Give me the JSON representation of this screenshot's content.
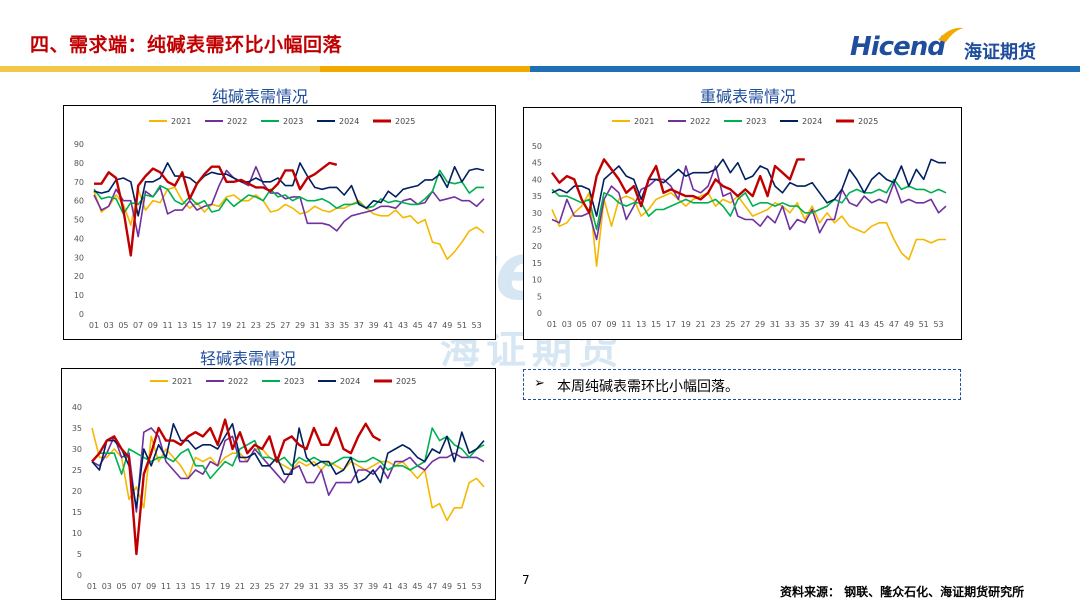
{
  "header": {
    "title": "四、需求端：纯碱表需环比小幅回落",
    "logo_text": "Hicend",
    "logo_cn": "海证期货"
  },
  "colors": {
    "title_red": "#c00000",
    "brand_blue": "#1f4e9c",
    "bar_orange": "#f2a900",
    "bar_blue": "#1f6fb5",
    "series_2021": "#f5b800",
    "series_2022": "#7030a0",
    "series_2023": "#00b050",
    "series_2024": "#002060",
    "series_2025": "#c00000"
  },
  "note": {
    "arrow": "➢",
    "text": "本周纯碱表需环比小幅回落。"
  },
  "page_number": "7",
  "source": "资料来源： 钢联、隆众石化、海证期货研究所",
  "chart_data": [
    {
      "type": "line",
      "title": "纯碱表需情况",
      "x_labels": [
        "01",
        "03",
        "05",
        "07",
        "09",
        "11",
        "13",
        "15",
        "17",
        "19",
        "21",
        "23",
        "25",
        "27",
        "29",
        "31",
        "33",
        "35",
        "37",
        "39",
        "41",
        "43",
        "45",
        "47",
        "49",
        "51",
        "53"
      ],
      "ylim": [
        0,
        90
      ],
      "yticks": [
        0,
        10,
        20,
        30,
        40,
        50,
        60,
        70,
        80,
        90
      ],
      "legend": "top",
      "grid": false,
      "series": [
        {
          "name": "2021",
          "values": [
            65,
            54,
            57,
            63,
            58,
            47,
            66,
            55,
            60,
            59,
            66,
            67,
            60,
            56,
            59,
            54,
            58,
            57,
            62,
            63,
            60,
            60,
            63,
            60,
            54,
            55,
            58,
            56,
            53,
            54,
            57,
            55,
            54,
            56,
            56,
            58,
            60,
            56,
            53,
            52,
            52,
            55,
            51,
            52,
            48,
            50,
            38,
            37,
            29,
            33,
            38,
            44,
            46,
            43
          ]
        },
        {
          "name": "2022",
          "values": [
            63,
            55,
            57,
            66,
            60,
            60,
            41,
            65,
            62,
            67,
            53,
            55,
            55,
            60,
            55,
            57,
            58,
            68,
            76,
            72,
            70,
            68,
            78,
            69,
            64,
            64,
            61,
            62,
            62,
            48,
            48,
            48,
            47,
            44,
            49,
            52,
            53,
            54,
            55,
            57,
            57,
            56,
            60,
            61,
            58,
            59,
            65,
            60,
            61,
            62,
            60,
            60,
            57,
            61
          ]
        },
        {
          "name": "2023",
          "values": [
            66,
            61,
            62,
            61,
            53,
            59,
            58,
            63,
            62,
            68,
            66,
            60,
            58,
            62,
            58,
            60,
            54,
            55,
            61,
            57,
            60,
            63,
            62,
            60,
            66,
            62,
            63,
            60,
            62,
            60,
            60,
            61,
            59,
            56,
            58,
            58,
            59,
            56,
            57,
            61,
            59,
            60,
            59,
            58,
            58,
            61,
            65,
            76,
            70,
            69,
            70,
            64,
            67,
            67
          ]
        },
        {
          "name": "2024",
          "values": [
            65,
            64,
            65,
            71,
            72,
            70,
            52,
            70,
            70,
            72,
            80,
            73,
            73,
            72,
            69,
            73,
            75,
            74,
            74,
            72,
            70,
            70,
            72,
            70,
            70,
            72,
            68,
            68,
            80,
            73,
            67,
            66,
            67,
            67,
            63,
            68,
            58,
            56,
            60,
            59,
            65,
            62,
            66,
            67,
            68,
            71,
            71,
            74,
            67,
            78,
            70,
            76,
            77,
            76
          ]
        },
        {
          "name": "2025",
          "values": [
            69,
            69,
            75,
            72,
            55,
            31,
            68,
            73,
            77,
            75,
            70,
            68,
            75,
            61,
            69,
            74,
            78,
            78,
            70,
            70,
            71,
            69,
            67,
            67,
            65,
            69,
            76,
            76,
            66,
            72,
            74,
            77,
            80,
            79
          ]
        }
      ]
    },
    {
      "type": "line",
      "title": "重碱表需情况",
      "x_labels": [
        "01",
        "03",
        "05",
        "07",
        "09",
        "11",
        "13",
        "15",
        "17",
        "19",
        "21",
        "23",
        "25",
        "27",
        "29",
        "31",
        "33",
        "35",
        "37",
        "39",
        "41",
        "43",
        "45",
        "47",
        "49",
        "51",
        "53"
      ],
      "ylim": [
        0,
        50
      ],
      "yticks": [
        0,
        5,
        10,
        15,
        20,
        25,
        30,
        35,
        40,
        45,
        50
      ],
      "legend": "top",
      "grid": false,
      "series": [
        {
          "name": "2021",
          "values": [
            31,
            26,
            27,
            30,
            32,
            36,
            14,
            34,
            26,
            34,
            35,
            34,
            29,
            31,
            34,
            35,
            36,
            34,
            32,
            34,
            35,
            36,
            32,
            34,
            33,
            35,
            32,
            29,
            30,
            31,
            33,
            32,
            30,
            33,
            28,
            32,
            27,
            30,
            27,
            29,
            26,
            25,
            24,
            26,
            27,
            27,
            22,
            18,
            16,
            22,
            22,
            21,
            22,
            22
          ]
        },
        {
          "name": "2022",
          "values": [
            28,
            27,
            34,
            29,
            29,
            30,
            22,
            34,
            38,
            36,
            28,
            32,
            37,
            38,
            40,
            40,
            38,
            34,
            44,
            37,
            36,
            38,
            44,
            35,
            36,
            29,
            28,
            28,
            26,
            29,
            27,
            32,
            25,
            28,
            27,
            31,
            24,
            28,
            28,
            37,
            33,
            32,
            35,
            33,
            34,
            33,
            39,
            33,
            34,
            33,
            33,
            34,
            30,
            32
          ]
        },
        {
          "name": "2023",
          "values": [
            37,
            35,
            35,
            34,
            33,
            34,
            25,
            36,
            35,
            33,
            32,
            33,
            33,
            29,
            31,
            31,
            32,
            33,
            34,
            33,
            33,
            33,
            34,
            32,
            29,
            34,
            36,
            32,
            33,
            33,
            32,
            33,
            32,
            32,
            30,
            30,
            31,
            32,
            34,
            33,
            36,
            37,
            36,
            36,
            37,
            36,
            40,
            37,
            38,
            37,
            37,
            36,
            37,
            36
          ]
        },
        {
          "name": "2024",
          "values": [
            36,
            37,
            36,
            38,
            38,
            37,
            29,
            40,
            42,
            44,
            41,
            40,
            34,
            40,
            40,
            39,
            41,
            43,
            41,
            42,
            42,
            42,
            43,
            46,
            42,
            45,
            40,
            41,
            44,
            43,
            38,
            36,
            39,
            38,
            38,
            39,
            36,
            33,
            34,
            37,
            43,
            40,
            36,
            40,
            42,
            40,
            39,
            44,
            38,
            43,
            40,
            46,
            45,
            45
          ]
        },
        {
          "name": "2025",
          "values": [
            42,
            39,
            41,
            40,
            34,
            30,
            41,
            46,
            43,
            40,
            36,
            38,
            32,
            40,
            44,
            36,
            37,
            36,
            35,
            35,
            34,
            36,
            40,
            38,
            37,
            35,
            37,
            35,
            41,
            35,
            44,
            42,
            40,
            46,
            46
          ]
        }
      ]
    },
    {
      "type": "line",
      "title": "轻碱表需情况",
      "x_labels": [
        "01",
        "03",
        "05",
        "07",
        "09",
        "11",
        "13",
        "15",
        "17",
        "19",
        "21",
        "23",
        "25",
        "27",
        "29",
        "31",
        "33",
        "35",
        "37",
        "39",
        "41",
        "43",
        "45",
        "47",
        "49",
        "51",
        "53"
      ],
      "ylim": [
        0,
        40
      ],
      "yticks": [
        0,
        5,
        10,
        15,
        20,
        25,
        30,
        35,
        40
      ],
      "legend": "top",
      "grid": false,
      "series": [
        {
          "name": "2021",
          "values": [
            35,
            28,
            28,
            30,
            28,
            18,
            21,
            16,
            33,
            27,
            30,
            28,
            26,
            23,
            28,
            27,
            28,
            26,
            28,
            29,
            29,
            27,
            30,
            30,
            28,
            27,
            26,
            25,
            27,
            26,
            27,
            25,
            27,
            26,
            25,
            27,
            26,
            25,
            26,
            27,
            27,
            26,
            27,
            25,
            23,
            25,
            16,
            17,
            13,
            16,
            16,
            22,
            23,
            21
          ]
        },
        {
          "name": "2022",
          "values": [
            27,
            26,
            29,
            33,
            28,
            29,
            15,
            34,
            35,
            33,
            27,
            25,
            23,
            23,
            25,
            24,
            27,
            26,
            32,
            33,
            27,
            27,
            30,
            28,
            26,
            24,
            22,
            25,
            26,
            22,
            22,
            25,
            19,
            22,
            22,
            22,
            25,
            25,
            24,
            26,
            23,
            27,
            27,
            28,
            26,
            25,
            27,
            28,
            28,
            29,
            28,
            28,
            28,
            27
          ]
        },
        {
          "name": "2023",
          "values": [
            27,
            29,
            29,
            29,
            24,
            30,
            29,
            28,
            27,
            28,
            28,
            27,
            29,
            30,
            26,
            26,
            23,
            25,
            27,
            26,
            30,
            31,
            32,
            28,
            28,
            27,
            28,
            26,
            28,
            27,
            28,
            27,
            26,
            27,
            28,
            28,
            27,
            27,
            28,
            27,
            25,
            26,
            26,
            25,
            26,
            27,
            35,
            32,
            33,
            31,
            30,
            28,
            30,
            31
          ]
        },
        {
          "name": "2024",
          "values": [
            27,
            25,
            32,
            32,
            30,
            26,
            16,
            30,
            26,
            31,
            28,
            36,
            32,
            32,
            30,
            31,
            31,
            30,
            33,
            36,
            28,
            28,
            29,
            26,
            26,
            28,
            24,
            24,
            35,
            28,
            26,
            27,
            27,
            24,
            25,
            28,
            22,
            23,
            25,
            22,
            29,
            30,
            31,
            30,
            28,
            27,
            30,
            29,
            33,
            27,
            34,
            29,
            30,
            32
          ]
        },
        {
          "name": "2025",
          "values": [
            27,
            29,
            32,
            33,
            30,
            28,
            5,
            24,
            29,
            35,
            32,
            32,
            31,
            33,
            34,
            33,
            35,
            31,
            37,
            30,
            34,
            29,
            31,
            30,
            33,
            27,
            32,
            33,
            31,
            30,
            35,
            31,
            31,
            35,
            30,
            29,
            33,
            36,
            33,
            32
          ]
        }
      ]
    }
  ]
}
